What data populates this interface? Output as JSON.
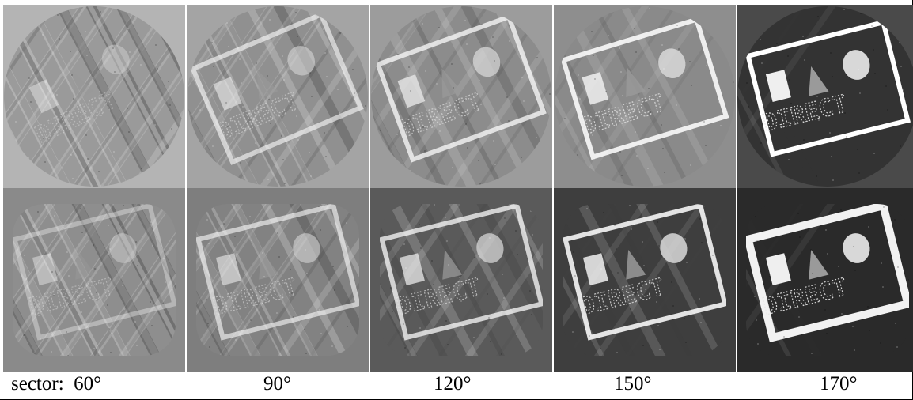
{
  "columns": [
    {
      "label": "sector:  60°"
    },
    {
      "label": "90°"
    },
    {
      "label": "120°"
    },
    {
      "label": "150°"
    },
    {
      "label": "170°"
    }
  ],
  "rows": [
    {
      "background_colors": [
        "#b4b4b4",
        "#a4a4a4",
        "#9c9c9c",
        "#8e8e8e",
        "#4a4a4a"
      ]
    },
    {
      "background_colors": [
        "#8a8a8a",
        "#7e7e7e",
        "#5a5a5a",
        "#3e3e3e",
        "#2a2a2a"
      ]
    }
  ],
  "phantom_text": "DIRECT"
}
